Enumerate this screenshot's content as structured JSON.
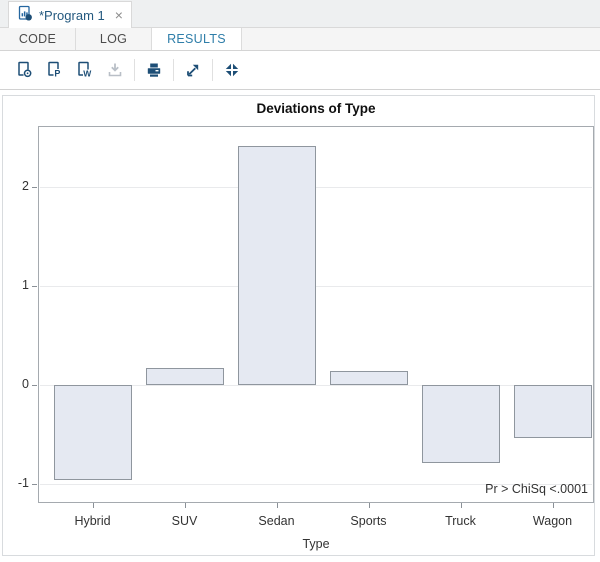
{
  "tab_bar": {
    "active_tab": {
      "title": "*Program 1",
      "close": "×"
    }
  },
  "subtabs": [
    {
      "label": "CODE",
      "active": false
    },
    {
      "label": "LOG",
      "active": false
    },
    {
      "label": "RESULTS",
      "active": true
    }
  ],
  "toolbar": {
    "icons": [
      {
        "name": "download-html-icon",
        "disabled": false
      },
      {
        "name": "download-pdf-icon",
        "disabled": false
      },
      {
        "name": "download-rtf-icon",
        "disabled": false
      },
      {
        "name": "download-results-icon",
        "disabled": true
      },
      {
        "name": "print-icon",
        "disabled": false
      },
      {
        "name": "open-in-new-window-icon",
        "disabled": false
      },
      {
        "name": "collapse-icon",
        "disabled": false
      }
    ]
  },
  "colors": {
    "accent_blue": "#2f7ea9",
    "tab_title_blue": "#24597f",
    "icon_navy": "#1d4e76",
    "icon_disabled": "#b9bfc7",
    "bar_fill": "#e5e9f2",
    "bar_border": "#8f969e",
    "plot_frame": "#a5aaaf",
    "gridline": "#e9eaec"
  },
  "chart_data": {
    "type": "bar",
    "title": "Deviations of Type",
    "xlabel": "Type",
    "ylabel": "",
    "categories": [
      "Hybrid",
      "SUV",
      "Sedan",
      "Sports",
      "Truck",
      "Wagon"
    ],
    "values": [
      -0.96,
      0.17,
      2.42,
      0.14,
      -0.79,
      -0.53
    ],
    "yticks": [
      -1,
      0,
      1,
      2
    ],
    "ylim": [
      -1.19,
      2.62
    ],
    "grid": true,
    "legend": null,
    "annotation": "Pr > ChiSq  <.0001"
  }
}
